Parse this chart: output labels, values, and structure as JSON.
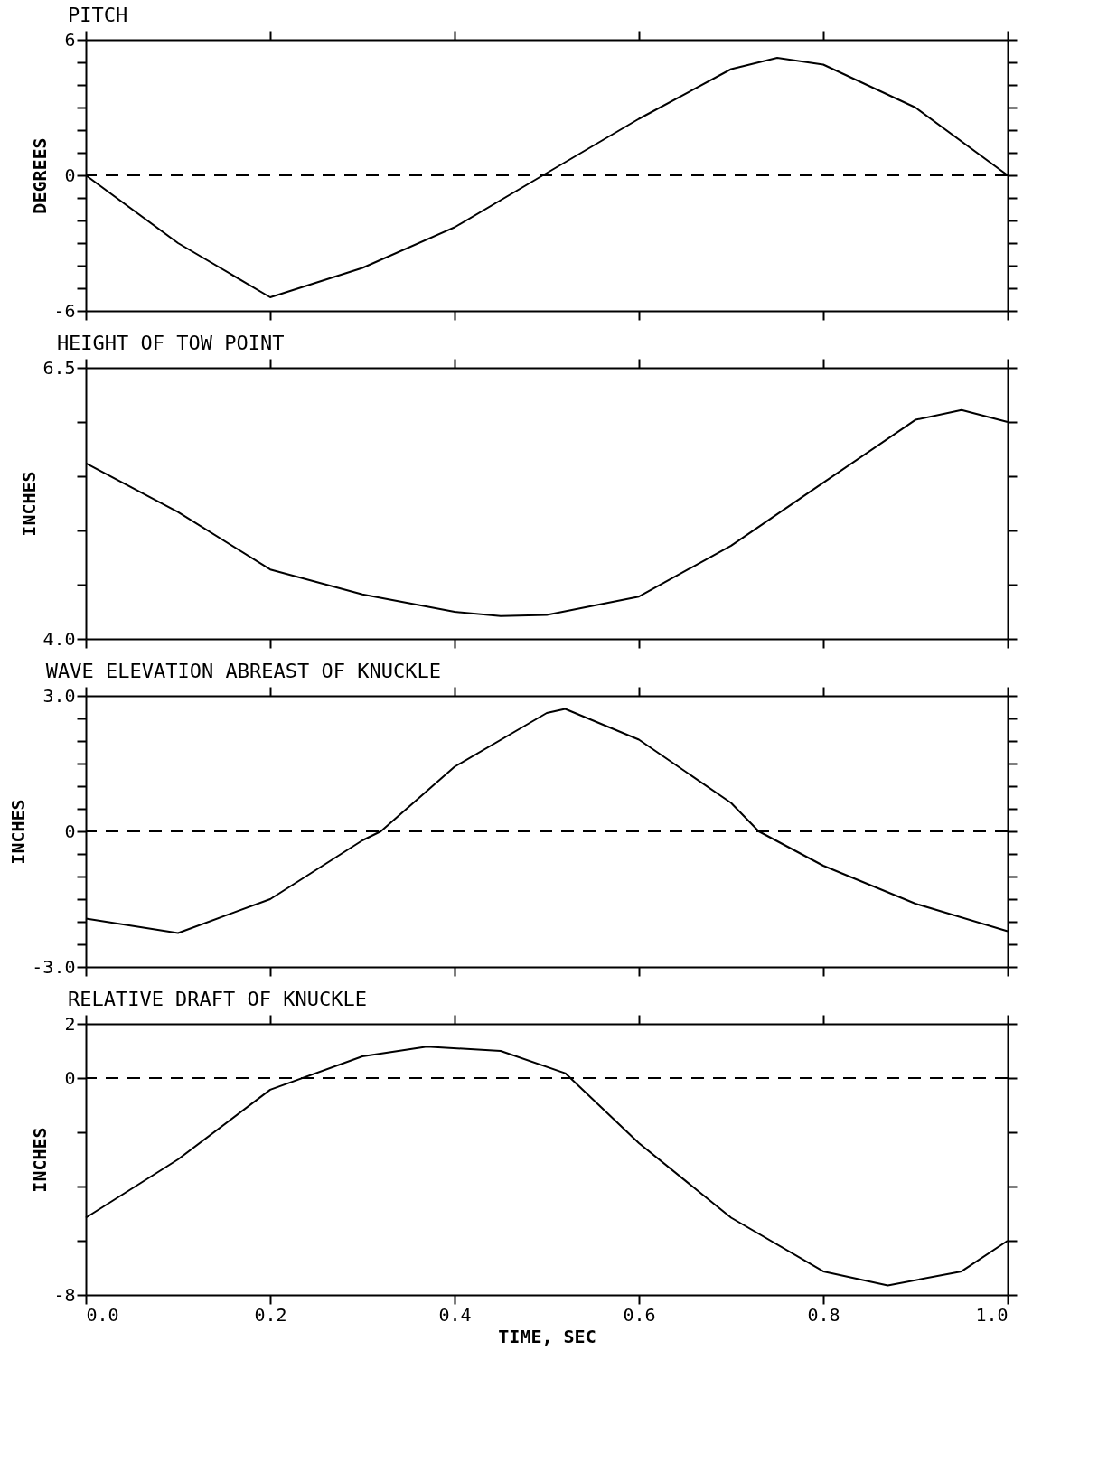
{
  "chart_data": [
    {
      "type": "line",
      "title": "PITCH",
      "ylabel": "DEGREES",
      "x": [
        0,
        0.1,
        0.2,
        0.3,
        0.4,
        0.5,
        0.6,
        0.7,
        0.75,
        0.8,
        0.9,
        1.0
      ],
      "series": [
        {
          "color": "#000000",
          "values": [
            0,
            -3.0,
            -5.4,
            -4.1,
            -2.3,
            0.1,
            2.5,
            4.7,
            5.2,
            4.9,
            3.0,
            0
          ]
        }
      ],
      "xlim": [
        0,
        1.0
      ],
      "xticks": [
        0,
        0.2,
        0.4,
        0.6,
        0.8,
        1.0
      ],
      "ylim": [
        -6,
        6
      ],
      "yticks": [
        -6,
        {
          "value": -5,
          "label": null
        },
        {
          "value": -4,
          "label": null
        },
        {
          "value": -3,
          "label": null
        },
        {
          "value": -2,
          "label": null
        },
        {
          "value": -1,
          "label": null
        },
        0,
        {
          "value": 1,
          "label": null
        },
        {
          "value": 2,
          "label": null
        },
        {
          "value": 3,
          "label": null
        },
        {
          "value": 4,
          "label": null
        },
        {
          "value": 5,
          "label": null
        },
        6
      ],
      "ref_lines": [
        {
          "axis": "y",
          "value": 0,
          "line_style": "dashed"
        }
      ],
      "tick_labels": "y",
      "grid": false,
      "marker": "none",
      "line_style": "solid"
    },
    {
      "type": "line",
      "title": "HEIGHT OF TOW POINT",
      "ylabel": "INCHES",
      "x": [
        0,
        0.1,
        0.2,
        0.3,
        0.4,
        0.45,
        0.5,
        0.6,
        0.7,
        0.8,
        0.9,
        0.95,
        1.0
      ],
      "series": [
        {
          "color": "#000000",
          "values": [
            5.62,
            5.17,
            4.64,
            4.41,
            4.25,
            4.21,
            4.22,
            4.39,
            4.86,
            5.44,
            6.02,
            6.11,
            6.0
          ]
        }
      ],
      "xlim": [
        0,
        1.0
      ],
      "xticks": [
        0,
        0.2,
        0.4,
        0.6,
        0.8,
        1.0
      ],
      "ylim": [
        4.0,
        6.5
      ],
      "yticks": [
        {
          "value": 4.0,
          "label": "4.0"
        },
        {
          "value": 4.5,
          "label": null
        },
        {
          "value": 5.0,
          "label": null
        },
        {
          "value": 5.5,
          "label": null
        },
        {
          "value": 6.0,
          "label": null
        },
        6.5
      ],
      "tick_labels": "y",
      "grid": false,
      "marker": "none",
      "line_style": "solid"
    },
    {
      "type": "line",
      "title": "WAVE ELEVATION ABREAST OF KNUCKLE",
      "ylabel": "INCHES",
      "x": [
        0,
        0.1,
        0.2,
        0.3,
        0.32,
        0.4,
        0.5,
        0.52,
        0.6,
        0.7,
        0.73,
        0.8,
        0.9,
        1.0
      ],
      "series": [
        {
          "color": "#000000",
          "values": [
            -1.93,
            -2.25,
            -1.5,
            -0.2,
            0,
            1.43,
            2.62,
            2.71,
            2.03,
            0.63,
            0,
            -0.76,
            -1.6,
            -2.21
          ]
        }
      ],
      "xlim": [
        0,
        1.0
      ],
      "xticks": [
        0,
        0.2,
        0.4,
        0.6,
        0.8,
        1.0
      ],
      "ylim": [
        -3.0,
        3.0
      ],
      "yticks": [
        {
          "value": -3.0,
          "label": "-3.0"
        },
        {
          "value": -2.5,
          "label": null
        },
        {
          "value": -2.0,
          "label": null
        },
        {
          "value": -1.5,
          "label": null
        },
        {
          "value": -1.0,
          "label": null
        },
        {
          "value": -0.5,
          "label": null
        },
        0,
        {
          "value": 0.5,
          "label": null
        },
        {
          "value": 1.0,
          "label": null
        },
        {
          "value": 1.5,
          "label": null
        },
        {
          "value": 2.0,
          "label": null
        },
        {
          "value": 2.5,
          "label": null
        },
        {
          "value": 3.0,
          "label": "3.0"
        }
      ],
      "ref_lines": [
        {
          "axis": "y",
          "value": 0,
          "line_style": "dashed"
        }
      ],
      "tick_labels": "y",
      "grid": false,
      "marker": "none",
      "line_style": "solid"
    },
    {
      "type": "line",
      "title": "RELATIVE DRAFT OF KNUCKLE",
      "ylabel": "INCHES",
      "xlabel": "TIME, SEC",
      "x": [
        0,
        0.1,
        0.2,
        0.3,
        0.37,
        0.45,
        0.52,
        0.6,
        0.7,
        0.8,
        0.87,
        0.95,
        1.0
      ],
      "series": [
        {
          "color": "#000000",
          "values": [
            -5.15,
            -3.0,
            -0.43,
            0.8,
            1.16,
            1.0,
            0.18,
            -2.4,
            -5.15,
            -7.13,
            -7.65,
            -7.13,
            -6.0
          ]
        }
      ],
      "xlim": [
        0,
        1.0
      ],
      "xticks": [
        {
          "value": 0,
          "label": "0.0"
        },
        0.2,
        0.4,
        0.6,
        0.8,
        {
          "value": 1.0,
          "label": "1.0"
        }
      ],
      "ylim": [
        -8,
        2
      ],
      "yticks": [
        -8,
        {
          "value": -6,
          "label": null
        },
        {
          "value": -4,
          "label": null
        },
        {
          "value": -2,
          "label": null
        },
        0,
        2
      ],
      "ref_lines": [
        {
          "axis": "y",
          "value": 0,
          "line_style": "dashed"
        }
      ],
      "grid": false,
      "marker": "none",
      "line_style": "solid"
    }
  ]
}
